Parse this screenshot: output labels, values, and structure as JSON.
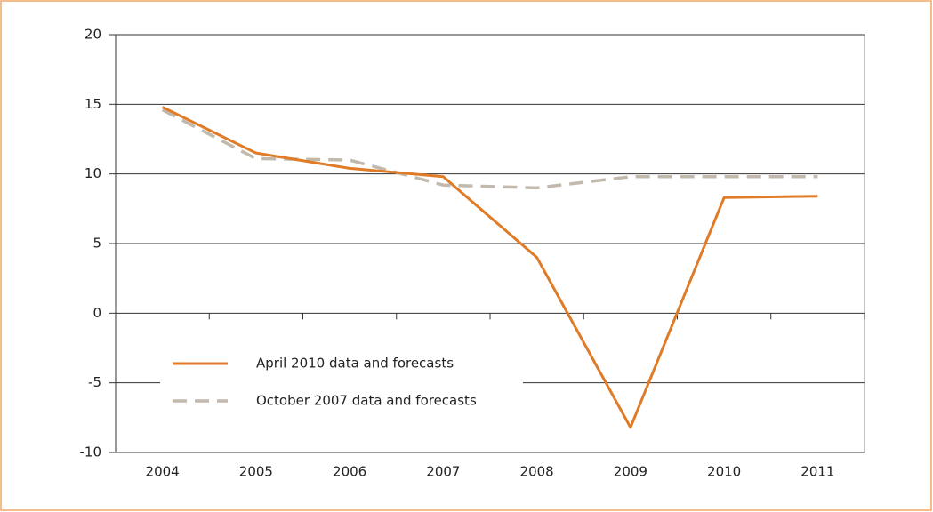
{
  "chart_data": {
    "type": "line",
    "categories": [
      "2004",
      "2005",
      "2006",
      "2007",
      "2008",
      "2009",
      "2010",
      "2011"
    ],
    "series": [
      {
        "name": "April 2010 data and forecasts",
        "color": "#e07b27",
        "dash": false,
        "values": [
          14.8,
          11.5,
          10.4,
          9.8,
          4.0,
          -8.2,
          8.3,
          8.4
        ]
      },
      {
        "name": "October 2007 data and forecasts",
        "color": "#c2b9ad",
        "dash": true,
        "values": [
          14.6,
          11.1,
          11.0,
          9.2,
          9.0,
          9.8,
          9.8,
          9.8
        ]
      }
    ],
    "ylim": [
      -10,
      20
    ],
    "yticks": [
      -10,
      -5,
      0,
      5,
      10,
      15,
      20
    ],
    "grid": true,
    "legend": "lower left"
  }
}
